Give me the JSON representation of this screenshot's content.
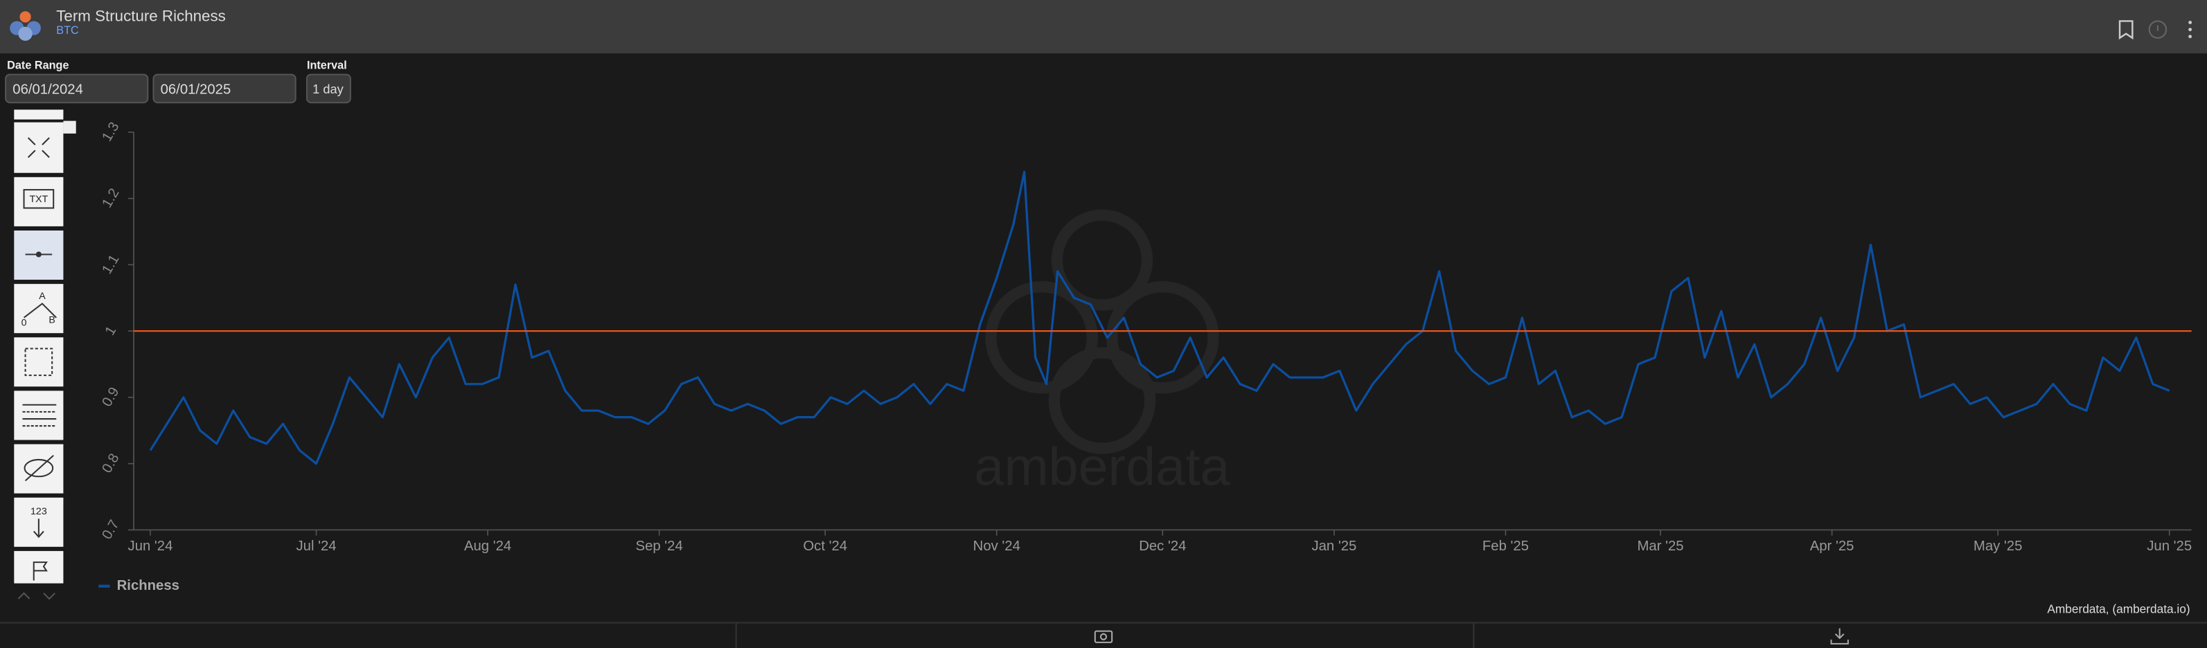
{
  "header": {
    "title": "Term Structure Richness",
    "subtitle": "BTC"
  },
  "controls": {
    "date_range_label": "Date Range",
    "start_date": "06/01/2024",
    "end_date": "06/01/2025",
    "interval_label": "Interval",
    "interval": "1 day"
  },
  "toolbar": {
    "labels": [
      "TXT",
      "A",
      "0",
      "B",
      "123"
    ]
  },
  "watermark": "amberdata",
  "footer": {
    "credit": "Amberdata, (amberdata.io)"
  },
  "chart_data": {
    "type": "line",
    "x": [
      0,
      3,
      6,
      9,
      12,
      15,
      18,
      21,
      24,
      27,
      30,
      33,
      36,
      39,
      42,
      45,
      48,
      51,
      54,
      57,
      60,
      63,
      66,
      69,
      72,
      75,
      78,
      81,
      84,
      87,
      90,
      93,
      96,
      99,
      102,
      105,
      108,
      111,
      114,
      117,
      120,
      123,
      126,
      129,
      132,
      135,
      138,
      141,
      144,
      147,
      150,
      153,
      156,
      158,
      160,
      162,
      164,
      167,
      170,
      173,
      176,
      179,
      182,
      185,
      188,
      191,
      194,
      197,
      200,
      203,
      206,
      209,
      212,
      215,
      218,
      221,
      224,
      227,
      230,
      233,
      236,
      239,
      242,
      245,
      248,
      251,
      254,
      257,
      260,
      263,
      266,
      269,
      272,
      275,
      278,
      281,
      284,
      287,
      290,
      293,
      296,
      299,
      302,
      305,
      308,
      311,
      314,
      317,
      320,
      323,
      326,
      329,
      332,
      335,
      338,
      341,
      344,
      347,
      350,
      353,
      356,
      359,
      362,
      365
    ],
    "series": [
      {
        "name": "Richness",
        "color": "#0b4fa0",
        "values": [
          0.82,
          0.86,
          0.9,
          0.85,
          0.83,
          0.88,
          0.84,
          0.83,
          0.86,
          0.82,
          0.8,
          0.86,
          0.93,
          0.9,
          0.87,
          0.95,
          0.9,
          0.96,
          0.99,
          0.92,
          0.92,
          0.93,
          1.07,
          0.96,
          0.97,
          0.91,
          0.88,
          0.88,
          0.87,
          0.87,
          0.86,
          0.88,
          0.92,
          0.93,
          0.89,
          0.88,
          0.89,
          0.88,
          0.86,
          0.87,
          0.87,
          0.9,
          0.89,
          0.91,
          0.89,
          0.9,
          0.92,
          0.89,
          0.92,
          0.91,
          1.01,
          1.08,
          1.16,
          1.24,
          0.96,
          0.92,
          1.09,
          1.05,
          1.04,
          0.99,
          1.02,
          0.95,
          0.93,
          0.94,
          0.99,
          0.93,
          0.96,
          0.92,
          0.91,
          0.95,
          0.93,
          0.93,
          0.93,
          0.94,
          0.88,
          0.92,
          0.95,
          0.98,
          1.0,
          1.09,
          0.97,
          0.94,
          0.92,
          0.93,
          1.02,
          0.92,
          0.94,
          0.87,
          0.88,
          0.86,
          0.87,
          0.95,
          0.96,
          1.06,
          1.08,
          0.96,
          1.03,
          0.93,
          0.98,
          0.9,
          0.92,
          0.95,
          1.02,
          0.94,
          0.99,
          1.13,
          1.0,
          1.01,
          0.9,
          0.91,
          0.92,
          0.89,
          0.9,
          0.87,
          0.88,
          0.89,
          0.92,
          0.89,
          0.88,
          0.96,
          0.94,
          0.99,
          0.92,
          0.91
        ]
      }
    ],
    "xlim": [
      -3,
      369
    ],
    "xticks": [
      {
        "value": 0,
        "label": "Jun '24"
      },
      {
        "value": 30,
        "label": "Jul '24"
      },
      {
        "value": 61,
        "label": "Aug '24"
      },
      {
        "value": 92,
        "label": "Sep '24"
      },
      {
        "value": 122,
        "label": "Oct '24"
      },
      {
        "value": 153,
        "label": "Nov '24"
      },
      {
        "value": 183,
        "label": "Dec '24"
      },
      {
        "value": 214,
        "label": "Jan '25"
      },
      {
        "value": 245,
        "label": "Feb '25"
      },
      {
        "value": 273,
        "label": "Mar '25"
      },
      {
        "value": 304,
        "label": "Apr '25"
      },
      {
        "value": 334,
        "label": "May '25"
      },
      {
        "value": 365,
        "label": "Jun '25"
      }
    ],
    "ylim": [
      0.7,
      1.3
    ],
    "yticks": [
      0.7,
      0.8,
      0.9,
      1,
      1.1,
      1.2,
      1.3
    ],
    "grid": false,
    "reference_line": {
      "value": 1,
      "color": "#e8541e"
    }
  }
}
